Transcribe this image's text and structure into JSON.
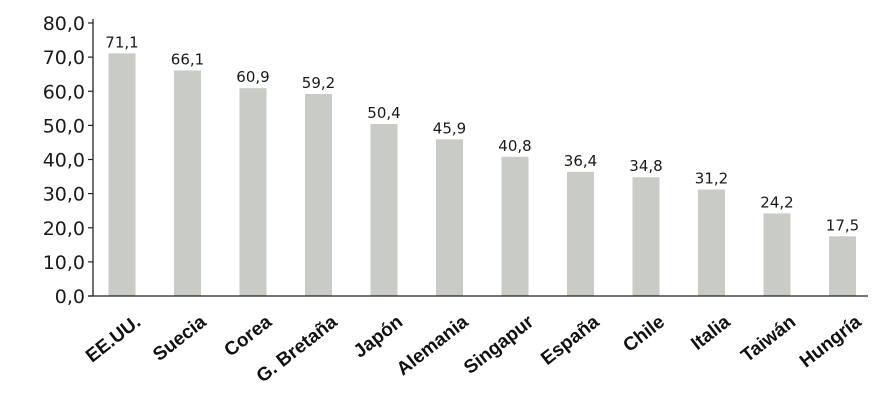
{
  "chart_data": {
    "type": "bar",
    "title": "",
    "xlabel": "",
    "ylabel": "",
    "categories": [
      "EE.UU.",
      "Suecia",
      "Corea",
      "G. Bretaña",
      "Japón",
      "Alemania",
      "Singapur",
      "España",
      "Chile",
      "Italia",
      "Taiwán",
      "Hungría"
    ],
    "values": [
      71.1,
      66.1,
      60.9,
      59.2,
      50.4,
      45.9,
      40.8,
      36.4,
      34.8,
      31.2,
      24.2,
      17.5
    ],
    "value_labels": [
      "71,1",
      "66,1",
      "60,9",
      "59,2",
      "50,4",
      "45,9",
      "40,8",
      "36,4",
      "34,8",
      "31,2",
      "24,2",
      "17,5"
    ],
    "ylim": [
      0,
      80
    ],
    "yticks": [
      0,
      10,
      20,
      30,
      40,
      50,
      60,
      70,
      80
    ],
    "ytick_labels": [
      "0,0",
      "10,0",
      "20,0",
      "30,0",
      "40,0",
      "50,0",
      "60,0",
      "70,0",
      "80,0"
    ],
    "grid": false,
    "legend": "none",
    "colors": {
      "bar": "#c9cbc6",
      "axis": "#222222",
      "text": "#1a1a1a"
    }
  }
}
